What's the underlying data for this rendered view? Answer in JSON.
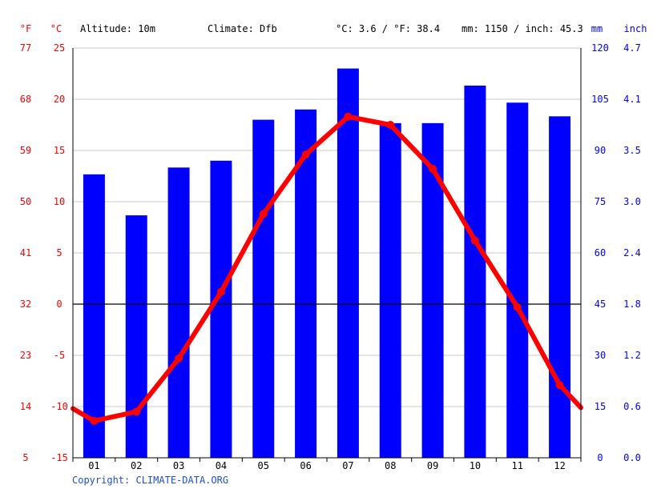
{
  "header": {
    "unit_f": "°F",
    "unit_c": "°C",
    "altitude": "Altitude: 10m",
    "climate": "Climate: Dfb",
    "temp_summary": "°C: 3.6 / °F: 38.4",
    "precip_summary": "mm: 1150 / inch: 45.3",
    "unit_mm": "mm",
    "unit_inch": "inch"
  },
  "copyright": "Copyright: CLIMATE-DATA.ORG",
  "colors": {
    "temperature": "#ff0000",
    "precipitation": "#0000ff",
    "grid": "#c8c8c8",
    "zero_line": "#000000"
  },
  "chart_data": {
    "type": "bar",
    "categories": [
      "01",
      "02",
      "03",
      "04",
      "05",
      "06",
      "07",
      "08",
      "09",
      "10",
      "11",
      "12"
    ],
    "series": [
      {
        "type": "bar",
        "axis": "right",
        "unit": "mm",
        "values": [
          83,
          71,
          85,
          87,
          99,
          102,
          114,
          98,
          98,
          109,
          104,
          100
        ]
      },
      {
        "type": "line",
        "axis": "left",
        "unit": "°C",
        "values": [
          -11.4,
          -10.5,
          -5.3,
          1.2,
          8.8,
          14.6,
          18.3,
          17.5,
          13.2,
          6.2,
          -0.3,
          -7.9
        ],
        "edge_values": [
          -10.2,
          -10.1
        ]
      }
    ],
    "y_left_c": {
      "min": -15,
      "max": 25,
      "ticks": [
        "-15",
        "-10",
        "-5",
        "0",
        "5",
        "10",
        "15",
        "20",
        "25"
      ]
    },
    "y_left_f": {
      "ticks": [
        "5",
        "14",
        "23",
        "32",
        "41",
        "50",
        "59",
        "68",
        "77"
      ]
    },
    "y_right_mm": {
      "min": 0,
      "max": 120,
      "ticks": [
        "0",
        "15",
        "30",
        "45",
        "60",
        "75",
        "90",
        "105",
        "120"
      ]
    },
    "y_right_inch": {
      "ticks": [
        "0.0",
        "0.6",
        "1.2",
        "1.8",
        "2.4",
        "3.0",
        "3.5",
        "4.1",
        "4.7"
      ]
    },
    "grid": true,
    "legend": "none"
  }
}
